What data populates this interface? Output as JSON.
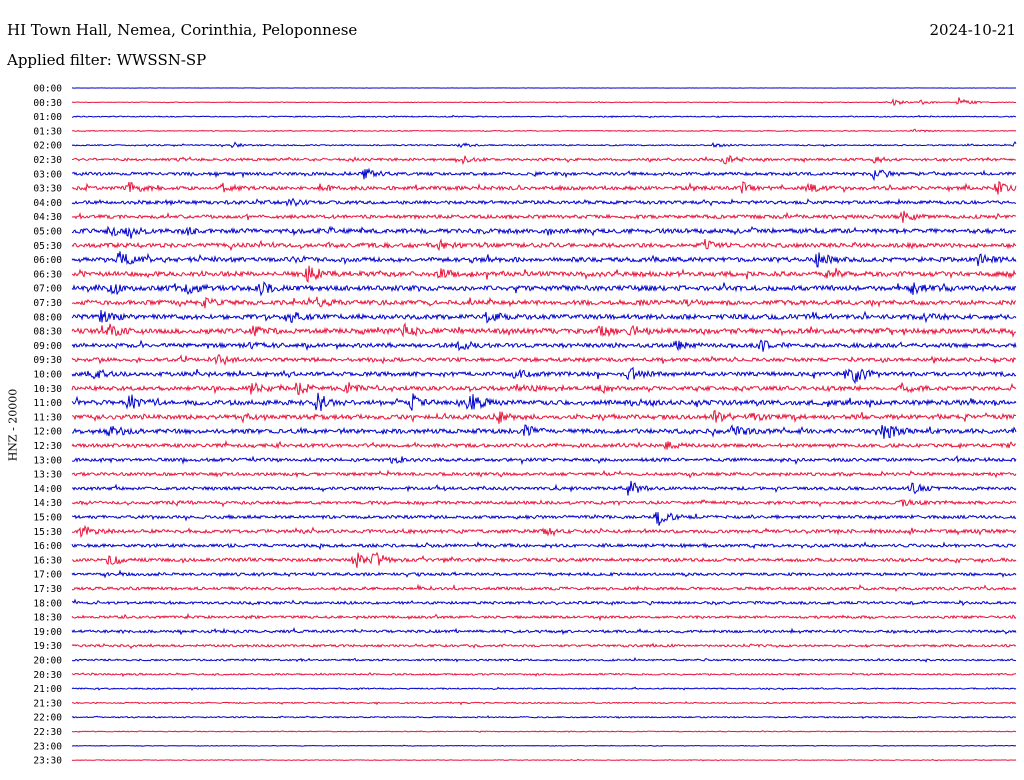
{
  "header": {
    "station": "HI Town Hall, Nemea, Corinthia, Peloponnese",
    "date": "2024-10-21",
    "filter_label": "Applied filter:",
    "filter_value": "WWSSN-SP"
  },
  "chart_data": {
    "type": "line",
    "subtype": "helicorder",
    "title": "",
    "ylabel": "HNZ - 20000",
    "xlabel": "",
    "grid": false,
    "legend": "none",
    "rows": [
      "00:00",
      "00:30",
      "01:00",
      "01:30",
      "02:00",
      "02:30",
      "03:00",
      "03:30",
      "04:00",
      "04:30",
      "05:00",
      "05:30",
      "06:00",
      "06:30",
      "07:00",
      "07:30",
      "08:00",
      "08:30",
      "09:00",
      "09:30",
      "10:00",
      "10:30",
      "11:00",
      "11:30",
      "12:00",
      "12:30",
      "13:00",
      "13:30",
      "14:00",
      "14:30",
      "15:00",
      "15:30",
      "16:00",
      "16:30",
      "17:00",
      "17:30",
      "18:00",
      "18:30",
      "19:00",
      "19:30",
      "20:00",
      "20:30",
      "21:00",
      "21:30",
      "22:00",
      "22:30",
      "23:00",
      "23:30"
    ],
    "colors": [
      "#0000cc",
      "#e8143c"
    ],
    "noise_level": [
      0.1,
      0.3,
      0.5,
      0.4,
      0.6,
      1.2,
      1.5,
      1.8,
      1.6,
      1.7,
      2.2,
      2.0,
      2.2,
      2.3,
      2.4,
      2.2,
      2.3,
      2.5,
      2.0,
      1.8,
      2.0,
      2.0,
      2.3,
      2.2,
      2.2,
      1.7,
      1.6,
      1.5,
      1.5,
      1.5,
      1.5,
      1.7,
      1.5,
      1.6,
      1.4,
      1.4,
      1.3,
      1.2,
      1.3,
      1.1,
      0.9,
      0.8,
      0.6,
      0.6,
      0.6,
      0.4,
      0.3,
      0.3
    ],
    "events": [
      {
        "row": 1,
        "t": 0.87,
        "a": 3
      },
      {
        "row": 1,
        "t": 0.9,
        "a": 2
      },
      {
        "row": 1,
        "t": 0.94,
        "a": 5
      },
      {
        "row": 3,
        "t": 0.89,
        "a": 2
      },
      {
        "row": 4,
        "t": 0.17,
        "a": 2
      },
      {
        "row": 4,
        "t": 0.41,
        "a": 2
      },
      {
        "row": 4,
        "t": 0.68,
        "a": 2
      },
      {
        "row": 4,
        "t": 1.0,
        "a": 3
      },
      {
        "row": 5,
        "t": 0.41,
        "a": 6
      },
      {
        "row": 5,
        "t": 0.69,
        "a": 5
      },
      {
        "row": 5,
        "t": 0.85,
        "a": 3
      },
      {
        "row": 6,
        "t": 0.31,
        "a": 5
      },
      {
        "row": 6,
        "t": 0.85,
        "a": 5
      },
      {
        "row": 7,
        "t": 0.06,
        "a": 5
      },
      {
        "row": 7,
        "t": 0.16,
        "a": 4
      },
      {
        "row": 7,
        "t": 0.26,
        "a": 4
      },
      {
        "row": 7,
        "t": 0.71,
        "a": 5
      },
      {
        "row": 7,
        "t": 0.78,
        "a": 4
      },
      {
        "row": 7,
        "t": 0.98,
        "a": 6
      },
      {
        "row": 8,
        "t": 0.23,
        "a": 4
      },
      {
        "row": 9,
        "t": 0.88,
        "a": 5
      },
      {
        "row": 10,
        "t": 0.04,
        "a": 5
      },
      {
        "row": 10,
        "t": 0.06,
        "a": 4
      },
      {
        "row": 10,
        "t": 0.12,
        "a": 4
      },
      {
        "row": 11,
        "t": 0.39,
        "a": 5
      },
      {
        "row": 11,
        "t": 0.67,
        "a": 6
      },
      {
        "row": 12,
        "t": 0.05,
        "a": 7
      },
      {
        "row": 12,
        "t": 0.79,
        "a": 7
      },
      {
        "row": 12,
        "t": 0.96,
        "a": 5
      },
      {
        "row": 13,
        "t": 0.25,
        "a": 9
      },
      {
        "row": 13,
        "t": 0.39,
        "a": 4
      },
      {
        "row": 13,
        "t": 0.8,
        "a": 3
      },
      {
        "row": 13,
        "t": 0.99,
        "a": 6
      },
      {
        "row": 14,
        "t": 0.04,
        "a": 6
      },
      {
        "row": 14,
        "t": 0.12,
        "a": 5
      },
      {
        "row": 14,
        "t": 0.2,
        "a": 5
      },
      {
        "row": 14,
        "t": 0.89,
        "a": 5
      },
      {
        "row": 15,
        "t": 0.14,
        "a": 4
      },
      {
        "row": 15,
        "t": 0.26,
        "a": 4
      },
      {
        "row": 15,
        "t": 0.65,
        "a": 3
      },
      {
        "row": 16,
        "t": 0.03,
        "a": 5
      },
      {
        "row": 16,
        "t": 0.23,
        "a": 5
      },
      {
        "row": 16,
        "t": 0.44,
        "a": 5
      },
      {
        "row": 16,
        "t": 0.9,
        "a": 4
      },
      {
        "row": 17,
        "t": 0.04,
        "a": 5
      },
      {
        "row": 17,
        "t": 0.19,
        "a": 4
      },
      {
        "row": 17,
        "t": 0.35,
        "a": 5
      },
      {
        "row": 17,
        "t": 0.56,
        "a": 5
      },
      {
        "row": 17,
        "t": 0.59,
        "a": 7
      },
      {
        "row": 18,
        "t": 0.19,
        "a": 3
      },
      {
        "row": 18,
        "t": 0.41,
        "a": 4
      },
      {
        "row": 18,
        "t": 0.64,
        "a": 4
      },
      {
        "row": 18,
        "t": 0.73,
        "a": 6
      },
      {
        "row": 19,
        "t": 0.15,
        "a": 6
      },
      {
        "row": 20,
        "t": 0.02,
        "a": 5
      },
      {
        "row": 20,
        "t": 0.47,
        "a": 5
      },
      {
        "row": 20,
        "t": 0.59,
        "a": 8
      },
      {
        "row": 20,
        "t": 0.82,
        "a": 8
      },
      {
        "row": 20,
        "t": 0.83,
        "a": 6
      },
      {
        "row": 21,
        "t": 0.19,
        "a": 6
      },
      {
        "row": 21,
        "t": 0.24,
        "a": 6
      },
      {
        "row": 21,
        "t": 0.29,
        "a": 4
      },
      {
        "row": 21,
        "t": 0.47,
        "a": 5
      },
      {
        "row": 21,
        "t": 0.56,
        "a": 4
      },
      {
        "row": 21,
        "t": 0.88,
        "a": 5
      },
      {
        "row": 22,
        "t": 0.06,
        "a": 10
      },
      {
        "row": 22,
        "t": 0.26,
        "a": 9
      },
      {
        "row": 22,
        "t": 0.36,
        "a": 6
      },
      {
        "row": 22,
        "t": 0.42,
        "a": 10
      },
      {
        "row": 22,
        "t": 0.59,
        "a": 4
      },
      {
        "row": 23,
        "t": 0.18,
        "a": 4
      },
      {
        "row": 23,
        "t": 0.45,
        "a": 6
      },
      {
        "row": 23,
        "t": 0.68,
        "a": 5
      },
      {
        "row": 23,
        "t": 0.72,
        "a": 3
      },
      {
        "row": 24,
        "t": 0.04,
        "a": 6
      },
      {
        "row": 24,
        "t": 0.48,
        "a": 5
      },
      {
        "row": 24,
        "t": 0.7,
        "a": 6
      },
      {
        "row": 24,
        "t": 0.86,
        "a": 9
      },
      {
        "row": 25,
        "t": 0.63,
        "a": 3
      },
      {
        "row": 26,
        "t": 0.34,
        "a": 3
      },
      {
        "row": 28,
        "t": 0.59,
        "a": 8
      },
      {
        "row": 28,
        "t": 0.89,
        "a": 5
      },
      {
        "row": 29,
        "t": 0.11,
        "a": 3
      },
      {
        "row": 29,
        "t": 0.88,
        "a": 3
      },
      {
        "row": 30,
        "t": 0.62,
        "a": 10
      },
      {
        "row": 31,
        "t": 0.01,
        "a": 6
      },
      {
        "row": 31,
        "t": 0.5,
        "a": 3
      },
      {
        "row": 31,
        "t": 0.96,
        "a": 2
      },
      {
        "row": 33,
        "t": 0.04,
        "a": 6
      },
      {
        "row": 33,
        "t": 0.3,
        "a": 8
      },
      {
        "row": 33,
        "t": 0.32,
        "a": 7
      }
    ]
  }
}
